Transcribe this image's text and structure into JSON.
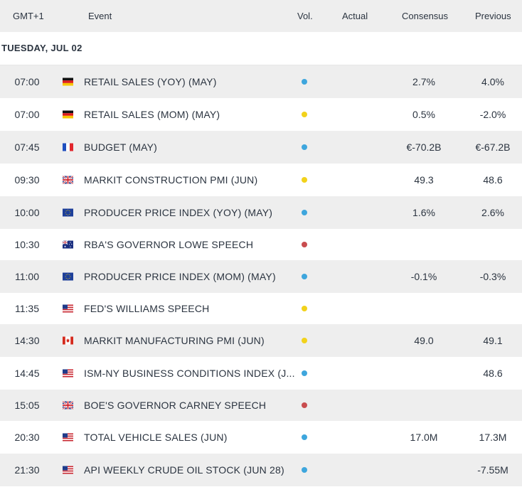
{
  "header": {
    "timezone": "GMT+1",
    "event": "Event",
    "vol": "Vol.",
    "actual": "Actual",
    "consensus": "Consensus",
    "previous": "Previous"
  },
  "day_label": "TUESDAY, JUL 02",
  "colors": {
    "low": "#3ea6dd",
    "medium": "#f2d21b",
    "high": "#c94d4f"
  },
  "events": [
    {
      "time": "07:00",
      "country": "germany-flag",
      "event": "RETAIL SALES (YOY) (MAY)",
      "volatility": "low",
      "actual": "",
      "consensus": "2.7%",
      "previous": "4.0%"
    },
    {
      "time": "07:00",
      "country": "germany-flag",
      "event": "RETAIL SALES (MOM) (MAY)",
      "volatility": "medium",
      "actual": "",
      "consensus": "0.5%",
      "previous": "-2.0%"
    },
    {
      "time": "07:45",
      "country": "france-flag",
      "event": "BUDGET (MAY)",
      "volatility": "low",
      "actual": "",
      "consensus": "€-70.2B",
      "previous": "€-67.2B"
    },
    {
      "time": "09:30",
      "country": "uk-flag",
      "event": "MARKIT CONSTRUCTION PMI (JUN)",
      "volatility": "medium",
      "actual": "",
      "consensus": "49.3",
      "previous": "48.6"
    },
    {
      "time": "10:00",
      "country": "eu-flag",
      "event": "PRODUCER PRICE INDEX (YOY) (MAY)",
      "volatility": "low",
      "actual": "",
      "consensus": "1.6%",
      "previous": "2.6%"
    },
    {
      "time": "10:30",
      "country": "australia-flag",
      "event": "RBA'S GOVERNOR LOWE SPEECH",
      "volatility": "high",
      "actual": "",
      "consensus": "",
      "previous": ""
    },
    {
      "time": "11:00",
      "country": "eu-flag",
      "event": "PRODUCER PRICE INDEX (MOM) (MAY)",
      "volatility": "low",
      "actual": "",
      "consensus": "-0.1%",
      "previous": "-0.3%"
    },
    {
      "time": "11:35",
      "country": "us-flag",
      "event": "FED'S WILLIAMS SPEECH",
      "volatility": "medium",
      "actual": "",
      "consensus": "",
      "previous": ""
    },
    {
      "time": "14:30",
      "country": "canada-flag",
      "event": "MARKIT MANUFACTURING PMI (JUN)",
      "volatility": "medium",
      "actual": "",
      "consensus": "49.0",
      "previous": "49.1"
    },
    {
      "time": "14:45",
      "country": "us-flag",
      "event": "ISM-NY BUSINESS CONDITIONS INDEX (J...",
      "volatility": "low",
      "actual": "",
      "consensus": "",
      "previous": "48.6"
    },
    {
      "time": "15:05",
      "country": "uk-flag",
      "event": "BOE'S GOVERNOR CARNEY SPEECH",
      "volatility": "high",
      "actual": "",
      "consensus": "",
      "previous": ""
    },
    {
      "time": "20:30",
      "country": "us-flag",
      "event": "TOTAL VEHICLE SALES (JUN)",
      "volatility": "low",
      "actual": "",
      "consensus": "17.0M",
      "previous": "17.3M"
    },
    {
      "time": "21:30",
      "country": "us-flag",
      "event": "API WEEKLY CRUDE OIL STOCK (JUN 28)",
      "volatility": "low",
      "actual": "",
      "consensus": "",
      "previous": "-7.55M"
    }
  ]
}
